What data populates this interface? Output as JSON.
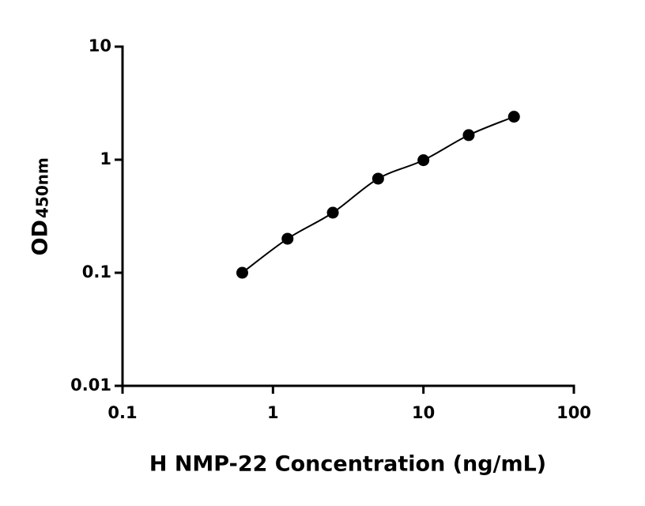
{
  "chart_data": {
    "type": "scatter",
    "x_label": "H NMP-22 Concentration (ng/mL)",
    "y_label": "OD",
    "y_label_sub": "450nm",
    "x": [
      0.625,
      1.25,
      2.5,
      5,
      10,
      20,
      40
    ],
    "series": [
      {
        "color": "#000000",
        "values": [
          0.1,
          0.2,
          0.34,
          0.68,
          0.99,
          1.65,
          2.4
        ]
      }
    ],
    "xscale": "log",
    "yscale": "log",
    "xlim": [
      0.1,
      100
    ],
    "ylim": [
      0.01,
      10
    ],
    "xticks": [
      0.1,
      1,
      10,
      100
    ],
    "yticks": [
      0.01,
      0.1,
      1,
      10
    ],
    "fit_line": true
  }
}
